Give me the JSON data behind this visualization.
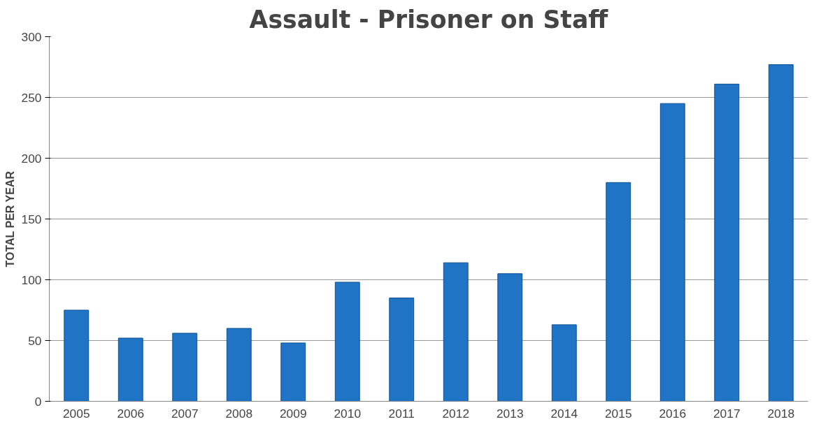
{
  "chart_data": {
    "type": "bar",
    "title": "Assault - Prisoner on Staff",
    "ylabel": "TOTAL PER YEAR",
    "categories": [
      "2005",
      "2006",
      "2007",
      "2008",
      "2009",
      "2010",
      "2011",
      "2012",
      "2013",
      "2014",
      "2015",
      "2016",
      "2017",
      "2018"
    ],
    "values": [
      75,
      52,
      56,
      60,
      48,
      98,
      85,
      114,
      105,
      63,
      180,
      245,
      261,
      277
    ],
    "color": "#1f74c6",
    "ylim": [
      0,
      300
    ],
    "yticks": [
      0,
      50,
      100,
      150,
      200,
      250,
      300
    ],
    "grid": "y"
  }
}
